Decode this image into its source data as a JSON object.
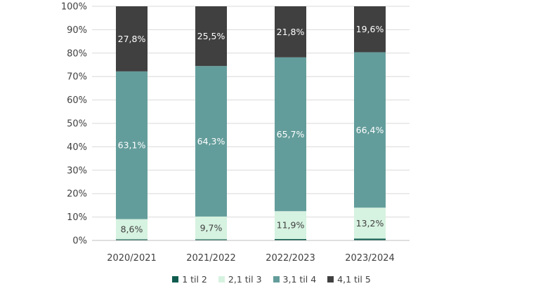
{
  "chart_data": {
    "type": "bar",
    "stacked": "percent",
    "categories": [
      "2020/2021",
      "2021/2022",
      "2022/2023",
      "2023/2024"
    ],
    "series": [
      {
        "name": "1 til 2",
        "color": "#0f5c4f",
        "values": [
          0.5,
          0.5,
          0.6,
          0.8
        ]
      },
      {
        "name": "2,1 til 3",
        "color": "#d6f2e0",
        "values": [
          8.6,
          9.7,
          11.9,
          13.2
        ]
      },
      {
        "name": "3,1 til 4",
        "color": "#639d9b",
        "values": [
          63.1,
          64.3,
          65.7,
          66.4
        ]
      },
      {
        "name": "4,1 til 5",
        "color": "#404040",
        "values": [
          27.8,
          25.5,
          21.8,
          19.6
        ]
      }
    ],
    "data_labels": [
      [
        null,
        "8,6%",
        "63,1%",
        "27,8%"
      ],
      [
        null,
        "9,7%",
        "64,3%",
        "25,5%"
      ],
      [
        null,
        "11,9%",
        "65,7%",
        "21,8%"
      ],
      [
        null,
        "13,2%",
        "66,4%",
        "19,6%"
      ]
    ],
    "y_ticks": [
      "0%",
      "10%",
      "20%",
      "30%",
      "40%",
      "50%",
      "60%",
      "70%",
      "80%",
      "90%",
      "100%"
    ],
    "ylim": [
      0,
      100
    ],
    "grid": true,
    "legend_position": "bottom",
    "title": "",
    "xlabel": "",
    "ylabel": ""
  }
}
